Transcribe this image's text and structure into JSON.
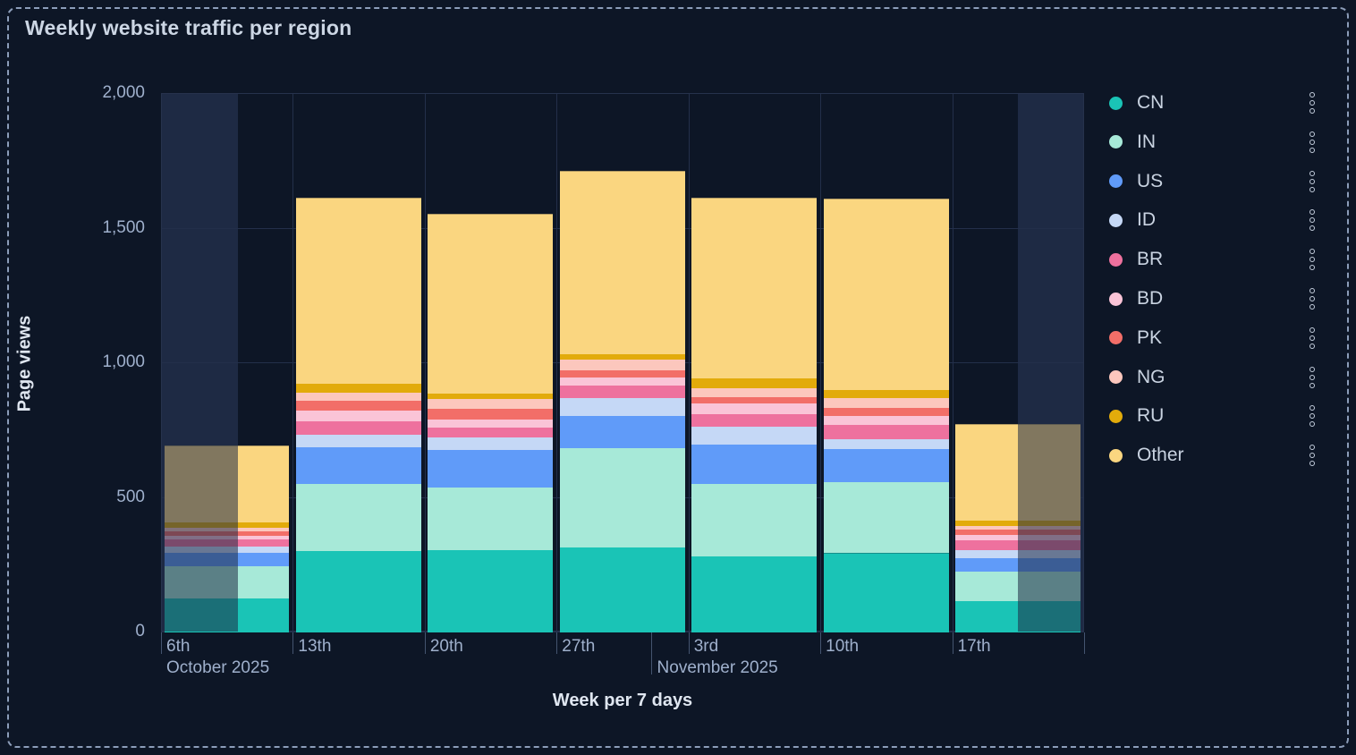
{
  "panel": {
    "title": "Weekly website traffic per region"
  },
  "chart_data": {
    "type": "bar",
    "stacked": true,
    "title": "Weekly website traffic per region",
    "xlabel": "Week per 7 days",
    "ylabel": "Page views",
    "ylim": [
      0,
      2000
    ],
    "grid": true,
    "legend_position": "right",
    "yticks": [
      {
        "value": 0,
        "label": "0"
      },
      {
        "value": 500,
        "label": "500"
      },
      {
        "value": 1000,
        "label": "1,000"
      },
      {
        "value": 1500,
        "label": "1,500"
      },
      {
        "value": 2000,
        "label": "2,000"
      }
    ],
    "categories": [
      "6th",
      "13th",
      "20th",
      "27th",
      "3rd",
      "10th",
      "17th"
    ],
    "month_labels": [
      {
        "text": "October 2025",
        "at_week_index": 0
      },
      {
        "text": "November 2025",
        "at_week_index": 4
      }
    ],
    "month_separator": {
      "after_week_index": 3,
      "day_fraction": 0.714
    },
    "series": [
      {
        "name": "CN",
        "color": "#1ac4b6",
        "values": [
          125,
          302,
          306,
          317,
          281,
          294,
          115
        ]
      },
      {
        "name": "IN",
        "color": "#a7e9d8",
        "values": [
          122,
          248,
          233,
          367,
          271,
          263,
          112
        ]
      },
      {
        "name": "US",
        "color": "#609bf9",
        "values": [
          50,
          137,
          139,
          120,
          145,
          123,
          50
        ]
      },
      {
        "name": "ID",
        "color": "#c5d8f6",
        "values": [
          22,
          47,
          45,
          65,
          66,
          36,
          28
        ]
      },
      {
        "name": "BR",
        "color": "#ee719e",
        "values": [
          25,
          50,
          37,
          48,
          48,
          56,
          36
        ]
      },
      {
        "name": "BD",
        "color": "#fac4d7",
        "values": [
          15,
          39,
          30,
          30,
          39,
          31,
          20
        ]
      },
      {
        "name": "PK",
        "color": "#f26e68",
        "values": [
          16,
          37,
          39,
          28,
          24,
          32,
          20
        ]
      },
      {
        "name": "NG",
        "color": "#fcc7bd",
        "values": [
          15,
          30,
          39,
          39,
          33,
          34,
          13
        ]
      },
      {
        "name": "RU",
        "color": "#e2ab0b",
        "values": [
          20,
          33,
          20,
          20,
          35,
          30,
          22
        ]
      },
      {
        "name": "Other",
        "color": "#fad680",
        "values": [
          280,
          688,
          662,
          676,
          668,
          710,
          354
        ]
      }
    ],
    "faded_regions": [
      {
        "week_index": 0,
        "side": "left",
        "fraction": 0.58
      },
      {
        "week_index": 6,
        "side": "right",
        "fraction": 0.5
      }
    ],
    "legend_menu_icon": "kebab-menu"
  }
}
